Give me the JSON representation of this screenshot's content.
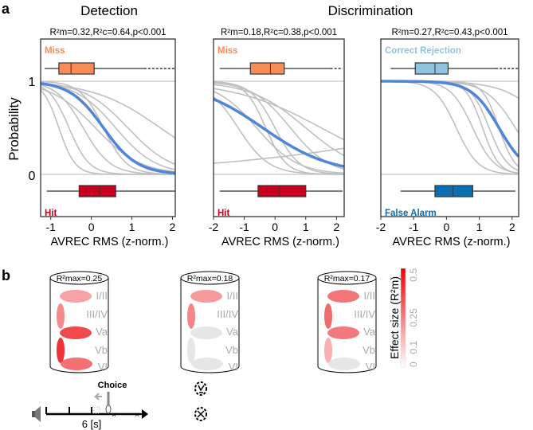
{
  "panel_a_label": "a",
  "panel_b_label": "b",
  "group_titles": {
    "detection": "Detection",
    "discrimination": "Discrimination"
  },
  "colors": {
    "curve_mean": "#4f86d9",
    "curve_subject": "#c0c0c0",
    "miss": "#fb8c56",
    "hit": "#c8001e",
    "correct_rejection": "#8fc4de",
    "false_alarm": "#0a6fb0"
  },
  "chart_data": [
    {
      "type": "line",
      "stats": "R²m=0.32,R²c=0.64,p<0.001",
      "xlabel": "AVREC RMS (z-norm.)",
      "ylabel": "Probability",
      "xlim": [
        -1.25,
        2.07
      ],
      "ylim": [
        0,
        1
      ],
      "xticks": [
        "-1",
        "0",
        "1",
        "2"
      ],
      "xtick_values": [
        -1,
        0,
        1,
        2
      ],
      "yticks": [
        "0",
        "1"
      ],
      "top_box": {
        "label": "Miss",
        "color": "#fb8c56",
        "whisker": [
          -1.15,
          1.3
        ],
        "outliers_to": 2.07,
        "q1": -0.8,
        "median": -0.5,
        "q3": 0.07
      },
      "bottom_box": {
        "label": "Hit",
        "color": "#c8001e",
        "whisker": [
          -1.1,
          2.07
        ],
        "q1": -0.3,
        "median": 0.2,
        "q3": 0.6
      },
      "mean_curve": {
        "midpoint": 0.3,
        "slope": 2.4
      },
      "subject_curves": [
        {
          "midpoint": -0.8,
          "slope": 5
        },
        {
          "midpoint": -0.55,
          "slope": 4
        },
        {
          "midpoint": -0.2,
          "slope": 3
        },
        {
          "midpoint": 0.3,
          "slope": 3.5
        },
        {
          "midpoint": 0.6,
          "slope": 2
        },
        {
          "midpoint": 0.1,
          "slope": 1.8
        },
        {
          "midpoint": 1.7,
          "slope": 1.2
        },
        {
          "midpoint": 0.9,
          "slope": 1.8
        }
      ]
    },
    {
      "type": "line",
      "stats": "R²m=0.18,R²c=0.38,p<0.001",
      "xlabel": "AVREC RMS (z-norm.)",
      "xlim": [
        -2,
        2.25
      ],
      "ylim": [
        0,
        1
      ],
      "xticks": [
        "-2",
        "-1",
        "0",
        "1",
        "2"
      ],
      "xtick_values": [
        -2,
        -1,
        0,
        1,
        2
      ],
      "top_box": {
        "label": "Miss",
        "color": "#fb8c56",
        "whisker": [
          -1.8,
          1.8
        ],
        "outliers_to": 2.2,
        "q1": -0.8,
        "median": -0.15,
        "q3": 0.3
      },
      "bottom_box": {
        "label": "Hit",
        "color": "#c8001e",
        "whisker": [
          -1.8,
          2.2
        ],
        "q1": -0.55,
        "median": 0.15,
        "q3": 1.0
      },
      "mean_curve": {
        "midpoint": -0.4,
        "slope": 0.9
      },
      "subject_curves": [
        {
          "midpoint": -1.2,
          "slope": 2
        },
        {
          "midpoint": -0.6,
          "slope": 1.5
        },
        {
          "midpoint": 0.0,
          "slope": 2.5
        },
        {
          "midpoint": 1.5,
          "slope": 0.7
        },
        {
          "midpoint": 0.5,
          "slope": 1.6
        },
        {
          "midpoint": -0.3,
          "slope": 3
        },
        {
          "midpoint": 6,
          "slope": -0.25
        },
        {
          "midpoint": 1.0,
          "slope": 1.1
        }
      ]
    },
    {
      "type": "line",
      "stats": "R²m=0.27,R²c=0.43,p<0.001",
      "xlabel": "AVREC RMS (z-norm.)",
      "xlim": [
        -2,
        2.2
      ],
      "ylim": [
        0,
        1
      ],
      "xticks": [
        "-2",
        "-1",
        "0",
        "1",
        "2"
      ],
      "xtick_values": [
        -2,
        -1,
        0,
        1,
        2
      ],
      "top_box": {
        "label": "Correct Rejection",
        "color": "#8fc4de",
        "whisker": [
          -1.7,
          1.5
        ],
        "outliers_to": 2.2,
        "q1": -0.95,
        "median": -0.35,
        "q3": 0.05
      },
      "bottom_box": {
        "label": "False Alarm",
        "color": "#0a6fb0",
        "whisker": [
          -1.4,
          2.1
        ],
        "q1": -0.35,
        "median": 0.2,
        "q3": 0.8
      },
      "mean_curve": {
        "midpoint": 1.6,
        "slope": 2.4
      },
      "subject_curves": [
        {
          "midpoint": 0.3,
          "slope": 3
        },
        {
          "midpoint": 0.8,
          "slope": 3
        },
        {
          "midpoint": 1.1,
          "slope": 4
        },
        {
          "midpoint": 1.3,
          "slope": 3.5
        },
        {
          "midpoint": 1.6,
          "slope": 4
        },
        {
          "midpoint": 2.1,
          "slope": 2.2
        },
        {
          "midpoint": 3.2,
          "slope": 1.5
        }
      ]
    }
  ],
  "cylinders": [
    {
      "title": "R²max=0.25",
      "fills": [
        "#f7a2a4",
        "#f58a8c",
        "#f04a4d",
        "#ee3236",
        "#f37174"
      ]
    },
    {
      "title": "R²max=0.18",
      "fills": [
        "#f79a9c",
        "#f58587",
        "#e6e6e6",
        "#e6e6e6",
        "#e6e6e6"
      ]
    },
    {
      "title": "R²max=0.17",
      "fills": [
        "#f27577",
        "#f06b6e",
        "#f27a7c",
        "#f8b0b2",
        "#e6e6e6"
      ]
    }
  ],
  "layers": [
    "I/II",
    "III/IV",
    "Va",
    "Vb",
    "VI"
  ],
  "colorbar": {
    "label": "Effect size (R²m)",
    "ticks": [
      "0",
      "0.1",
      "0.25",
      "0.5"
    ],
    "tick_values": [
      0,
      0.1,
      0.25,
      0.5
    ],
    "min_color": "#ffffff",
    "max_color": "#ee0000"
  },
  "timeline": {
    "choice_label": "Choice",
    "duration_label": "6 [s]"
  }
}
